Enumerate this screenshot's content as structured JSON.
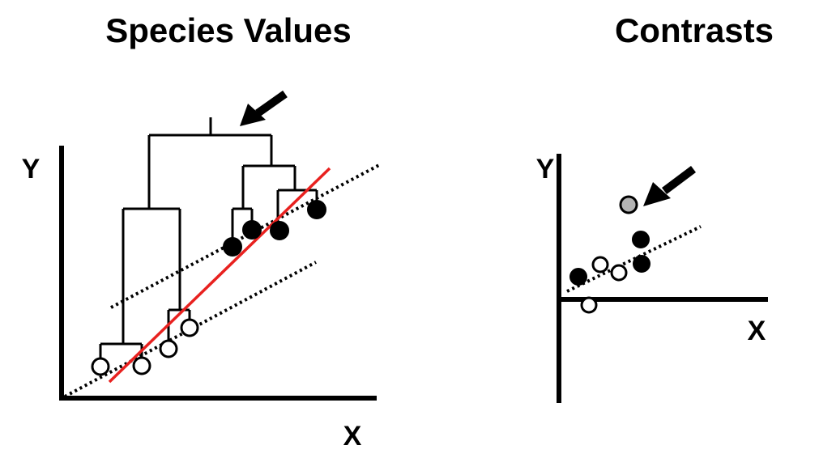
{
  "left_panel": {
    "title": "Species Values",
    "y_label": "Y",
    "x_label": "X"
  },
  "right_panel": {
    "title": "Contrasts",
    "y_label": "Y",
    "x_label": "X"
  },
  "colors": {
    "ink": "#000000",
    "regression_line": "#e8211f",
    "highlight_point": "#b3b3b3"
  }
}
